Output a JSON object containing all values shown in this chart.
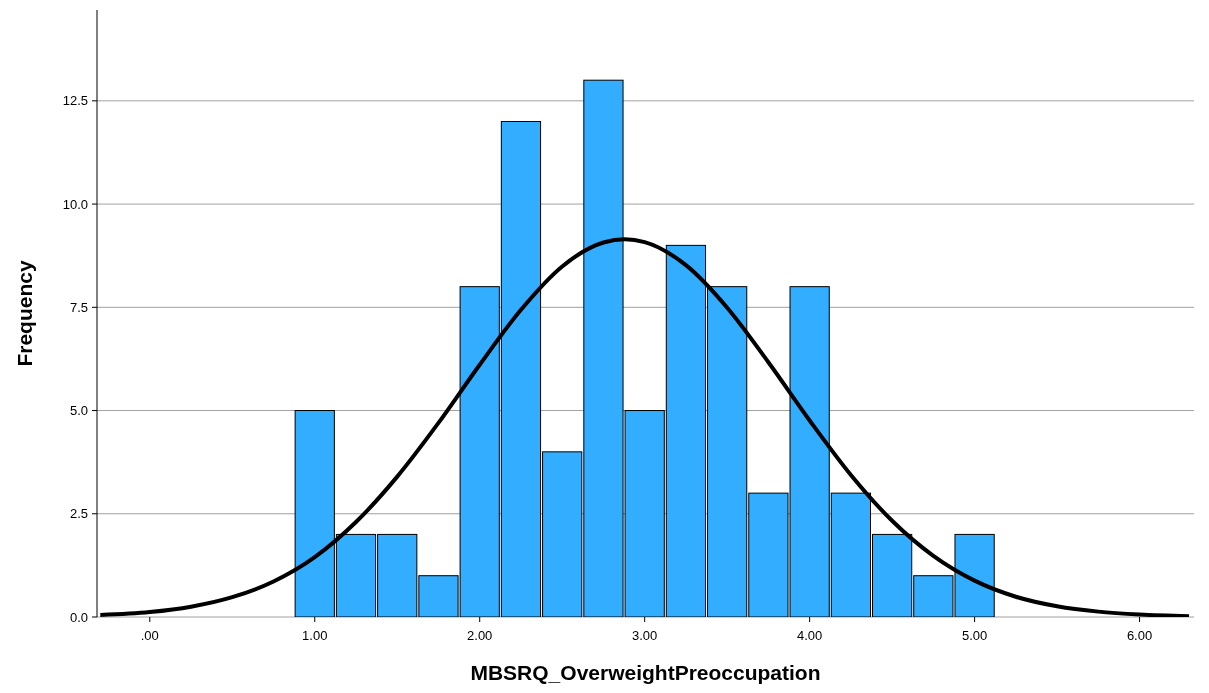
{
  "chart_data": {
    "type": "histogram",
    "xlabel": "MBSRQ_OverweightPreoccupation",
    "ylabel": "Frequency",
    "xlim": [
      -0.32,
      6.33
    ],
    "xticks": [
      {
        "value": 0,
        "label": ".00"
      },
      {
        "value": 1,
        "label": "1.00"
      },
      {
        "value": 2,
        "label": "2.00"
      },
      {
        "value": 3,
        "label": "3.00"
      },
      {
        "value": 4,
        "label": "4.00"
      },
      {
        "value": 5,
        "label": "5.00"
      },
      {
        "value": 6,
        "label": "6.00"
      }
    ],
    "ylim": [
      0,
      14.7
    ],
    "yticks": [
      {
        "value": 0,
        "label": "0.0"
      },
      {
        "value": 2.5,
        "label": "2.5"
      },
      {
        "value": 5,
        "label": "5.0"
      },
      {
        "value": 7.5,
        "label": "7.5"
      },
      {
        "value": 10,
        "label": "10.0"
      },
      {
        "value": 12.5,
        "label": "12.5"
      }
    ],
    "grid": "y",
    "series": [
      {
        "color": "#33adff",
        "bins": [
          0.875,
          1.125,
          1.375,
          1.625,
          1.875,
          2.125,
          2.375,
          2.625,
          2.875,
          3.125,
          3.375,
          3.625,
          3.875,
          4.125,
          4.375,
          4.625,
          4.875,
          5.125
        ],
        "values": [
          5,
          2,
          2,
          1,
          8,
          12,
          4,
          13,
          5,
          9,
          8,
          3,
          8,
          3,
          2,
          1,
          2
        ]
      },
      {
        "type": "line",
        "color": "#000000",
        "x": [
          -0.3,
          0,
          0.25,
          0.5,
          0.75,
          1,
          1.25,
          1.5,
          1.75,
          2,
          2.25,
          2.5,
          2.75,
          2.88,
          3,
          3.25,
          3.5,
          3.75,
          4,
          4.25,
          4.5,
          4.75,
          5,
          5.25,
          5.5,
          5.75,
          6,
          6.3
        ],
        "values": [
          0.05,
          0.12,
          0.25,
          0.48,
          0.86,
          1.45,
          2.3,
          3.4,
          4.7,
          6.11,
          7.44,
          8.49,
          9.07,
          9.15,
          9.08,
          8.52,
          7.49,
          6.17,
          4.76,
          3.44,
          2.33,
          1.48,
          0.88,
          0.49,
          0.26,
          0.13,
          0.06,
          0.02
        ]
      }
    ]
  }
}
